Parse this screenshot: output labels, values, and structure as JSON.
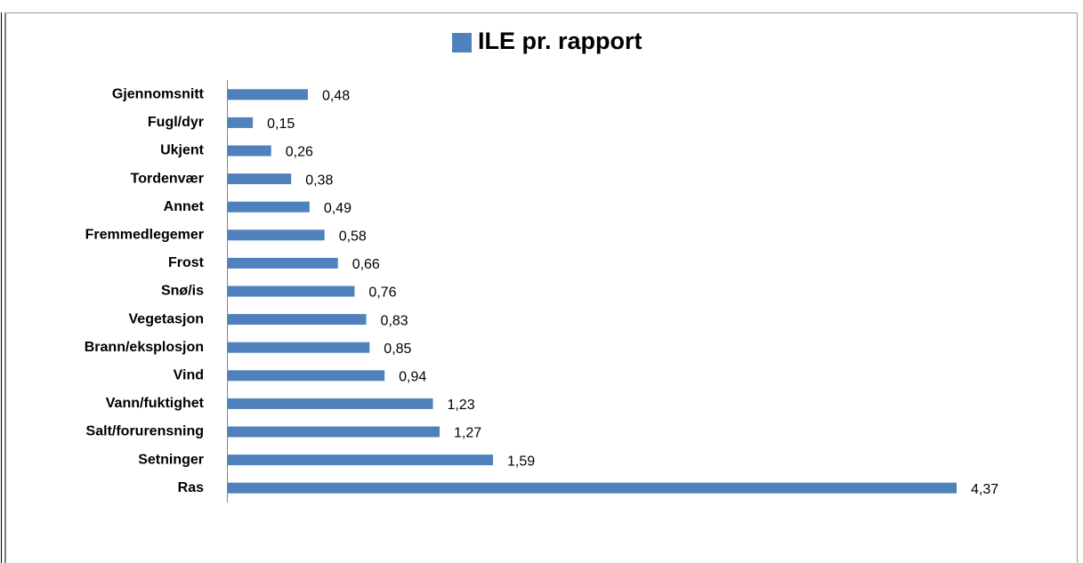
{
  "chart_data": {
    "type": "bar",
    "orientation": "horizontal",
    "categories": [
      "Gjennomsnitt",
      "Fugl/dyr",
      "Ukjent",
      "Tordenvær",
      "Annet",
      "Fremmedlegemer",
      "Frost",
      "Snø/is",
      "Vegetasjon",
      "Brann/eksplosjon",
      "Vind",
      "Vann/fuktighet",
      "Salt/forurensning",
      "Setninger",
      "Ras"
    ],
    "series": [
      {
        "name": "ILE pr. rapport",
        "color": "#4f81bd",
        "values": [
          0.48,
          0.15,
          0.26,
          0.38,
          0.49,
          0.58,
          0.66,
          0.76,
          0.83,
          0.85,
          0.94,
          1.23,
          1.27,
          1.59,
          4.37
        ],
        "value_labels": [
          "0,48",
          "0,15",
          "0,26",
          "0,38",
          "0,49",
          "0,58",
          "0,66",
          "0,76",
          "0,83",
          "0,85",
          "0,94",
          "1,23",
          "1,27",
          "1,59",
          "4,37"
        ]
      }
    ]
  }
}
